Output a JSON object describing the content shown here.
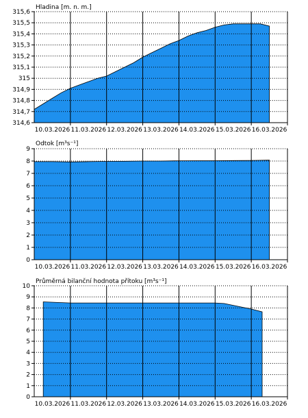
{
  "colors": {
    "fill": "#1e90ee",
    "stroke": "#000000",
    "grid": "#000000",
    "background": "#ffffff"
  },
  "chart_data": [
    {
      "type": "area",
      "title": "Hladina [m. n. m.]",
      "x_ticks": [
        "10.03.2026",
        "11.03.2026",
        "12.03.2026",
        "13.03.2026",
        "14.03.2026",
        "15.03.2026",
        "16.03.2026"
      ],
      "y_ticks": [
        "315,6",
        "315,5",
        "315,4",
        "315,3",
        "315,2",
        "315,1",
        "315",
        "314,9",
        "314,8",
        "314,7",
        "314,6"
      ],
      "ylim": [
        314.6,
        315.6
      ],
      "xlim": [
        0,
        7
      ],
      "grid": true,
      "x": [
        0,
        0.25,
        0.5,
        0.75,
        1.0,
        1.25,
        1.5,
        1.75,
        2.0,
        2.25,
        2.5,
        2.75,
        3.0,
        3.25,
        3.5,
        3.75,
        4.0,
        4.25,
        4.5,
        4.75,
        5.0,
        5.25,
        5.5,
        5.75,
        6.0,
        6.25,
        6.5
      ],
      "values": [
        314.72,
        314.77,
        314.82,
        314.87,
        314.91,
        314.94,
        314.97,
        315.0,
        315.02,
        315.06,
        315.1,
        315.14,
        315.19,
        315.23,
        315.27,
        315.31,
        315.34,
        315.38,
        315.41,
        315.43,
        315.46,
        315.48,
        315.49,
        315.49,
        315.49,
        315.49,
        315.47
      ]
    },
    {
      "type": "area",
      "title": "Odtok [m³s⁻¹]",
      "x_ticks": [
        "10.03.2026",
        "11.03.2026",
        "12.03.2026",
        "13.03.2026",
        "14.03.2026",
        "15.03.2026",
        "16.03.2026"
      ],
      "y_ticks": [
        "9",
        "8",
        "7",
        "6",
        "5",
        "4",
        "3",
        "2",
        "1",
        "0"
      ],
      "ylim": [
        0,
        9
      ],
      "xlim": [
        0,
        7
      ],
      "grid": true,
      "x": [
        0,
        0.5,
        1.0,
        1.5,
        2.0,
        2.5,
        3.0,
        3.5,
        4.0,
        4.5,
        5.0,
        5.5,
        6.0,
        6.5
      ],
      "values": [
        7.95,
        7.95,
        7.93,
        7.95,
        7.97,
        7.98,
        8.0,
        8.0,
        8.02,
        8.03,
        8.03,
        8.04,
        8.05,
        8.07
      ]
    },
    {
      "type": "area",
      "title": "Průměrná bilanční hodnota přítoku [m³s⁻¹]",
      "x_ticks": [
        "10.03.2026",
        "11.03.2026",
        "12.03.2026",
        "13.03.2026",
        "14.03.2026",
        "15.03.2026",
        "16.03.2026"
      ],
      "y_ticks": [
        "10",
        "9",
        "8",
        "7",
        "6",
        "5",
        "4",
        "3",
        "2",
        "1",
        "0"
      ],
      "ylim": [
        0,
        10
      ],
      "xlim": [
        0,
        7
      ],
      "grid": true,
      "x": [
        0.25,
        1.0,
        2.0,
        3.0,
        4.0,
        5.0,
        5.25,
        6.0,
        6.3
      ],
      "values": [
        8.55,
        8.45,
        8.45,
        8.45,
        8.45,
        8.45,
        8.4,
        7.9,
        7.65
      ]
    }
  ]
}
